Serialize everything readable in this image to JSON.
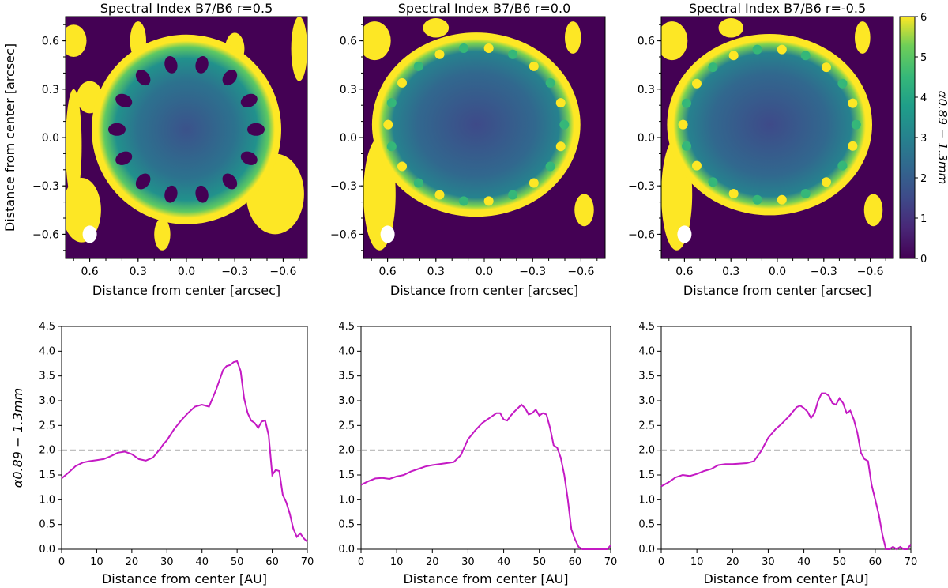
{
  "figure": {
    "cbar_label": "α0.89 − 1.3mm",
    "cbar_ticks": [
      "0",
      "1",
      "2",
      "3",
      "4",
      "5",
      "6"
    ]
  },
  "chart_data": [
    {
      "type": "heatmap",
      "title": "Spectral Index B7/B6 r=0.5",
      "xlabel": "Distance from center [arcsec]",
      "ylabel": "Distance from center [arcsec]",
      "xlim": [
        0.75,
        -0.75
      ],
      "ylim": [
        -0.75,
        0.75
      ],
      "xticks": [
        "0.6",
        "0.3",
        "0.0",
        "−0.3",
        "−0.6"
      ],
      "yticks": [
        "0.6",
        "0.3",
        "0.0",
        "−0.3",
        "−0.6"
      ],
      "colorbar": {
        "min": 0,
        "max": 6,
        "ticks": [
          0,
          1,
          2,
          3,
          4,
          5,
          6
        ]
      },
      "beam": {
        "x": 0.6,
        "y": -0.6
      }
    },
    {
      "type": "heatmap",
      "title": "Spectral Index B7/B6 r=0.0",
      "xlabel": "Distance from center [arcsec]",
      "ylabel": "",
      "xlim": [
        0.75,
        -0.75
      ],
      "ylim": [
        -0.75,
        0.75
      ],
      "xticks": [
        "0.6",
        "0.3",
        "0.0",
        "−0.3",
        "−0.6"
      ],
      "yticks": [
        "0.6",
        "0.3",
        "0.0",
        "−0.3",
        "−0.6"
      ],
      "beam": {
        "x": 0.6,
        "y": -0.6
      }
    },
    {
      "type": "heatmap",
      "title": "Spectral Index B7/B6 r=-0.5",
      "xlabel": "Distance from center [arcsec]",
      "ylabel": "",
      "xlim": [
        0.75,
        -0.75
      ],
      "ylim": [
        -0.75,
        0.75
      ],
      "xticks": [
        "0.6",
        "0.3",
        "0.0",
        "−0.3",
        "−0.6"
      ],
      "yticks": [
        "0.6",
        "0.3",
        "0.0",
        "−0.3",
        "−0.6"
      ],
      "beam": {
        "x": 0.6,
        "y": -0.6
      }
    },
    {
      "type": "line",
      "xlabel": "Distance from center [AU]",
      "ylabel": "α0.89 − 1.3mm",
      "xlim": [
        0,
        70
      ],
      "ylim": [
        0,
        4.5
      ],
      "xticks": [
        "0",
        "10",
        "20",
        "30",
        "40",
        "50",
        "60",
        "70"
      ],
      "yticks": [
        "0.0",
        "0.5",
        "1.0",
        "1.5",
        "2.0",
        "2.5",
        "3.0",
        "3.5",
        "4.0",
        "4.5"
      ],
      "hline": 2.0,
      "series": [
        {
          "name": "r=0.5",
          "color": "#c41ac4",
          "x": [
            0,
            2,
            4,
            6,
            8,
            10,
            12,
            14,
            16,
            18,
            20,
            22,
            24,
            26,
            28,
            29,
            30,
            32,
            34,
            36,
            38,
            40,
            42,
            44,
            46,
            47,
            48,
            49,
            50,
            51,
            52,
            53,
            54,
            55,
            56,
            57,
            58,
            59,
            60,
            61,
            62,
            63,
            64,
            65,
            66,
            67,
            68,
            69,
            70
          ],
          "y": [
            1.43,
            1.55,
            1.68,
            1.75,
            1.78,
            1.8,
            1.82,
            1.88,
            1.95,
            1.97,
            1.92,
            1.82,
            1.79,
            1.85,
            2.02,
            2.12,
            2.2,
            2.42,
            2.6,
            2.75,
            2.88,
            2.92,
            2.88,
            3.22,
            3.62,
            3.7,
            3.72,
            3.78,
            3.8,
            3.6,
            3.05,
            2.75,
            2.6,
            2.55,
            2.45,
            2.58,
            2.6,
            2.3,
            1.5,
            1.6,
            1.58,
            1.1,
            0.95,
            0.72,
            0.42,
            0.25,
            0.32,
            0.22,
            0.15
          ]
        }
      ]
    },
    {
      "type": "line",
      "xlabel": "Distance from center [AU]",
      "ylabel": "",
      "xlim": [
        0,
        70
      ],
      "ylim": [
        0,
        4.5
      ],
      "xticks": [
        "0",
        "10",
        "20",
        "30",
        "40",
        "50",
        "60",
        "70"
      ],
      "yticks": [
        "0.0",
        "0.5",
        "1.0",
        "1.5",
        "2.0",
        "2.5",
        "3.0",
        "3.5",
        "4.0",
        "4.5"
      ],
      "hline": 2.0,
      "series": [
        {
          "name": "r=0.0",
          "color": "#c41ac4",
          "x": [
            0,
            2,
            4,
            6,
            8,
            10,
            12,
            14,
            16,
            18,
            20,
            22,
            24,
            26,
            28,
            30,
            32,
            34,
            36,
            38,
            39,
            40,
            41,
            42,
            43,
            44,
            45,
            46,
            47,
            48,
            49,
            50,
            51,
            52,
            53,
            54,
            55,
            56,
            57,
            58,
            59,
            60,
            61,
            62,
            64,
            66,
            68,
            69,
            70
          ],
          "y": [
            1.3,
            1.37,
            1.43,
            1.44,
            1.42,
            1.47,
            1.5,
            1.57,
            1.62,
            1.67,
            1.7,
            1.72,
            1.74,
            1.76,
            1.9,
            2.22,
            2.4,
            2.55,
            2.65,
            2.75,
            2.75,
            2.62,
            2.6,
            2.7,
            2.78,
            2.85,
            2.92,
            2.85,
            2.72,
            2.75,
            2.82,
            2.7,
            2.75,
            2.72,
            2.45,
            2.1,
            2.05,
            1.85,
            1.5,
            1.0,
            0.4,
            0.2,
            0.05,
            0.0,
            0.0,
            0.0,
            0.0,
            0.0,
            0.08
          ]
        }
      ]
    },
    {
      "type": "line",
      "xlabel": "Distance from center [AU]",
      "ylabel": "",
      "xlim": [
        0,
        70
      ],
      "ylim": [
        0,
        4.5
      ],
      "xticks": [
        "0",
        "10",
        "20",
        "30",
        "40",
        "50",
        "60",
        "70"
      ],
      "yticks": [
        "0.0",
        "0.5",
        "1.0",
        "1.5",
        "2.0",
        "2.5",
        "3.0",
        "3.5",
        "4.0",
        "4.5"
      ],
      "hline": 2.0,
      "series": [
        {
          "name": "r=-0.5",
          "color": "#c41ac4",
          "x": [
            0,
            2,
            4,
            6,
            8,
            10,
            12,
            14,
            16,
            18,
            20,
            22,
            24,
            26,
            28,
            30,
            32,
            34,
            36,
            38,
            39,
            40,
            41,
            42,
            43,
            44,
            45,
            46,
            47,
            48,
            49,
            50,
            51,
            52,
            53,
            54,
            55,
            56,
            57,
            58,
            59,
            60,
            61,
            62,
            63,
            64,
            65,
            66,
            67,
            68,
            69,
            70
          ],
          "y": [
            1.27,
            1.35,
            1.45,
            1.5,
            1.48,
            1.52,
            1.58,
            1.62,
            1.7,
            1.72,
            1.72,
            1.73,
            1.74,
            1.78,
            1.98,
            2.25,
            2.42,
            2.55,
            2.7,
            2.87,
            2.9,
            2.85,
            2.78,
            2.65,
            2.75,
            3.0,
            3.15,
            3.15,
            3.1,
            2.95,
            2.92,
            3.05,
            2.95,
            2.75,
            2.8,
            2.62,
            2.35,
            1.95,
            1.82,
            1.78,
            1.3,
            1.0,
            0.7,
            0.3,
            0.0,
            0.0,
            0.05,
            0.0,
            0.05,
            0.0,
            0.0,
            0.1
          ]
        }
      ]
    }
  ]
}
